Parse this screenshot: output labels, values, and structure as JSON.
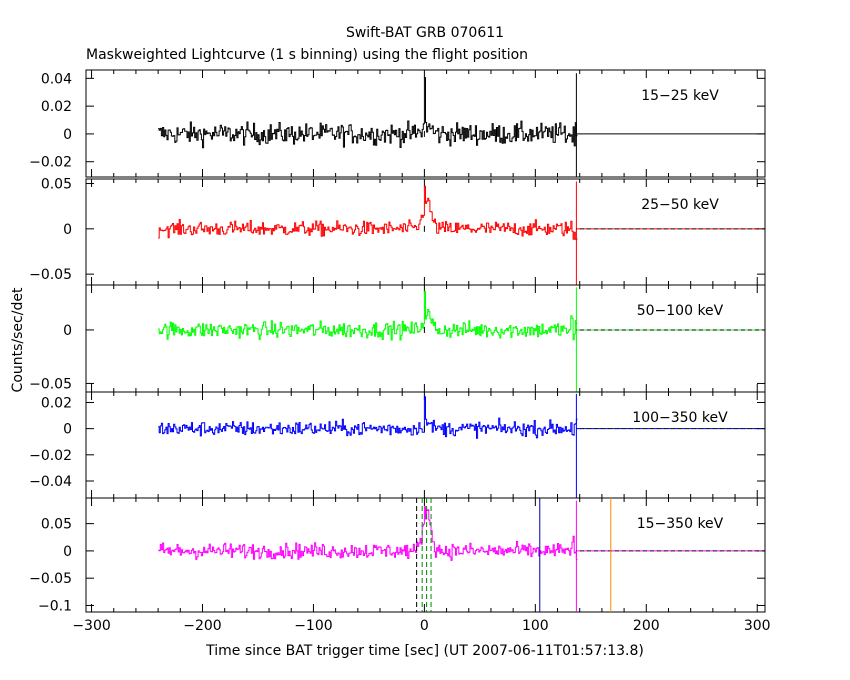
{
  "chart_data": {
    "type": "line",
    "title": "Swift-BAT GRB 070611",
    "subtitle": "Maskweighted Lightcurve (1 s binning) using the flight position",
    "xlabel": "Time since BAT trigger time [sec] (UT 2007-06-11T01:57:13.8)",
    "ylabel": "Counts/sec/det",
    "xlim": [
      -305,
      307
    ],
    "xticks": [
      -300,
      -200,
      -100,
      0,
      100,
      200,
      300
    ],
    "data_range": [
      -240,
      137
    ],
    "series": [
      {
        "name": "15-25 keV",
        "color": "#000000",
        "ylim": [
          -0.031,
          0.046
        ],
        "yticks": [
          -0.02,
          0,
          0.02,
          0.04
        ],
        "noise": 0.0075,
        "peak": 0.006,
        "spike": 0.045
      },
      {
        "name": "25-50 keV",
        "color": "#ff0000",
        "ylim": [
          -0.062,
          0.055
        ],
        "yticks": [
          -0.05,
          0,
          0.05
        ],
        "noise": 0.008,
        "peak": 0.03,
        "spike": 0.052
      },
      {
        "name": "50-100 keV",
        "color": "#00ff00",
        "ylim": [
          -0.058,
          0.042
        ],
        "yticks": [
          -0.05,
          0
        ],
        "noise": 0.0075,
        "peak": 0.015,
        "spike": 0.04
      },
      {
        "name": "100-350 keV",
        "color": "#0000ff",
        "ylim": [
          -0.053,
          0.028
        ],
        "yticks": [
          -0.04,
          -0.02,
          0,
          0.02
        ],
        "noise": 0.0055,
        "peak": 0.004,
        "spike": 0.027
      },
      {
        "name": "15-350 keV",
        "color": "#ff00ff",
        "ylim": [
          -0.112,
          0.097
        ],
        "yticks": [
          -0.1,
          -0.05,
          0,
          0.05
        ],
        "noise": 0.014,
        "peak": 0.07,
        "spike": 0.09
      }
    ],
    "markers": [
      {
        "x": -7,
        "color": "#000000",
        "style": "dashed"
      },
      {
        "x": -2,
        "color": "#008800",
        "style": "dashed"
      },
      {
        "x": 2,
        "color": "#008800",
        "style": "dashed"
      },
      {
        "x": 6,
        "color": "#008800",
        "style": "dashed"
      },
      {
        "x": 104,
        "color": "#0000aa",
        "style": "solid"
      },
      {
        "x": 168,
        "color": "#ff8800",
        "style": "solid"
      }
    ],
    "grid": false
  }
}
